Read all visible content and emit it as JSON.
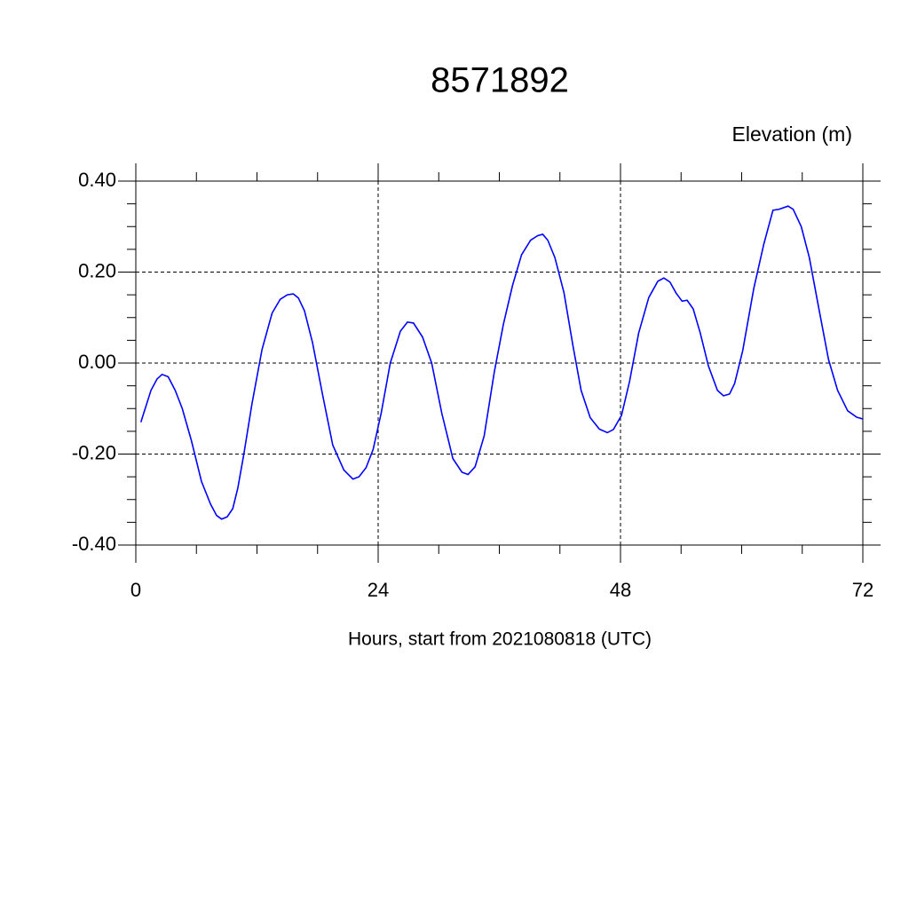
{
  "chart_data": {
    "type": "line",
    "title": "8571892",
    "subtitle": "Elevation (m)",
    "x_label": "Hours, start from 2021080818 (UTC)",
    "x": [
      0.5,
      1.5,
      2.1,
      2.6,
      3.2,
      3.9,
      4.6,
      5.5,
      6.5,
      7.4,
      8.0,
      8.5,
      9.05,
      9.6,
      10.1,
      10.7,
      11.5,
      12.5,
      13.5,
      14.3,
      15.0,
      15.6,
      16.1,
      16.7,
      17.5,
      18.5,
      19.5,
      20.6,
      21.5,
      22.1,
      22.8,
      23.5,
      24.3,
      25.2,
      26.2,
      26.9,
      27.5,
      28.4,
      29.3,
      30.3,
      31.4,
      32.3,
      32.9,
      33.6,
      34.5,
      35.5,
      36.4,
      37.3,
      38.2,
      39.1,
      39.8,
      40.3,
      40.8,
      41.5,
      42.4,
      43.3,
      44.1,
      45.0,
      45.9,
      46.7,
      47.3,
      48.1,
      48.9,
      49.8,
      50.8,
      51.7,
      52.3,
      52.9,
      53.5,
      54.1,
      54.6,
      55.2,
      55.9,
      56.7,
      57.6,
      58.2,
      58.8,
      59.3,
      60.1,
      61.2,
      62.2,
      63.1,
      63.7,
      64.6,
      65.1,
      65.9,
      66.7,
      67.6,
      68.6,
      69.5,
      70.5,
      71.4,
      72.0
    ],
    "series": [
      {
        "color": "#0000ff",
        "values": [
          -0.13,
          -0.06,
          -0.035,
          -0.025,
          -0.03,
          -0.06,
          -0.1,
          -0.17,
          -0.26,
          -0.31,
          -0.335,
          -0.343,
          -0.338,
          -0.32,
          -0.275,
          -0.2,
          -0.09,
          0.03,
          0.11,
          0.14,
          0.15,
          0.152,
          0.143,
          0.115,
          0.045,
          -0.07,
          -0.18,
          -0.235,
          -0.255,
          -0.25,
          -0.23,
          -0.19,
          -0.11,
          0.0,
          0.07,
          0.09,
          0.088,
          0.057,
          0.0,
          -0.11,
          -0.21,
          -0.24,
          -0.245,
          -0.228,
          -0.16,
          -0.02,
          0.085,
          0.17,
          0.238,
          0.27,
          0.28,
          0.283,
          0.27,
          0.232,
          0.155,
          0.037,
          -0.06,
          -0.12,
          -0.145,
          -0.153,
          -0.146,
          -0.115,
          -0.04,
          0.066,
          0.144,
          0.18,
          0.187,
          0.178,
          0.154,
          0.136,
          0.138,
          0.119,
          0.066,
          -0.006,
          -0.06,
          -0.072,
          -0.068,
          -0.045,
          0.027,
          0.164,
          0.262,
          0.336,
          0.338,
          0.345,
          0.338,
          0.3,
          0.232,
          0.125,
          0.008,
          -0.06,
          -0.105,
          -0.119,
          -0.123
        ]
      }
    ],
    "xlim": [
      0,
      72
    ],
    "xticks": [
      0,
      24,
      48,
      72
    ],
    "ylim": [
      -0.4,
      0.4
    ],
    "yticks": [
      {
        "value": 0.4,
        "label": "0.40"
      },
      {
        "value": 0.2,
        "label": "0.20"
      },
      {
        "value": 0,
        "label": "0.00"
      },
      {
        "value": -0.2,
        "label": "-0.20"
      },
      {
        "value": -0.4,
        "label": "-0.40"
      }
    ],
    "grid": true
  }
}
